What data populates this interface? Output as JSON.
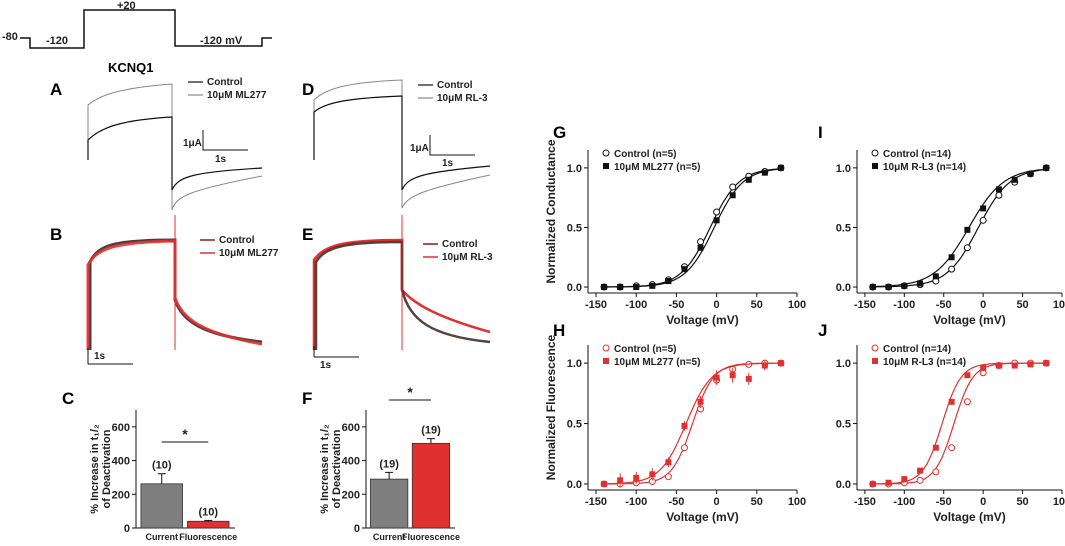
{
  "protocol": {
    "v_hold": "-80",
    "v_pre": "-120",
    "v_test": "+20",
    "v_tail": "-120 mV"
  },
  "title": "KCNQ1",
  "panels": {
    "A": "A",
    "B": "B",
    "C": "C",
    "D": "D",
    "E": "E",
    "F": "F",
    "G": "G",
    "H": "H",
    "I": "I",
    "J": "J"
  },
  "traces": {
    "A": {
      "legend": [
        "Control",
        "10μM ML277"
      ],
      "scale_current": "1μA",
      "scale_time": "1s"
    },
    "D": {
      "legend": [
        "Control",
        "10μM RL-3"
      ],
      "scale_current": "1μA",
      "scale_time": "1s"
    },
    "B": {
      "legend": [
        "Control",
        "10μM ML277"
      ],
      "scale_time": "1s"
    },
    "E": {
      "legend": [
        "Control",
        "10μM RL-3"
      ],
      "scale_time": "1s"
    }
  },
  "colors": {
    "control_gray": "#7f7f7f",
    "drug_red": "#e03131",
    "black": "#111111",
    "red_label": "#e03131"
  },
  "chart_data": [
    {
      "id": "C",
      "type": "bar",
      "ylabel": [
        "% Increase in t₁/₂",
        "of Deactivation"
      ],
      "categories": [
        "Current",
        "Fluorescence"
      ],
      "values": [
        262,
        40
      ],
      "errors": [
        60,
        5
      ],
      "n_labels": [
        "(10)",
        "(10)"
      ],
      "ylim": [
        0,
        700
      ],
      "yticks": [
        0,
        200,
        400,
        600
      ],
      "significance": "*"
    },
    {
      "id": "F",
      "type": "bar",
      "ylabel": [
        "% Increase in t₁/₂",
        "of Deactivation"
      ],
      "categories": [
        "Current",
        "Fluorescence"
      ],
      "values": [
        290,
        502
      ],
      "errors": [
        40,
        28
      ],
      "n_labels": [
        "(19)",
        "(19)"
      ],
      "ylim": [
        0,
        700
      ],
      "yticks": [
        0,
        200,
        400,
        600
      ],
      "significance": "*"
    },
    {
      "id": "G",
      "type": "scatter",
      "xlabel": "Voltage (mV)",
      "ylabel": "Normalized Conductance",
      "xlim": [
        -160,
        100
      ],
      "ylim": [
        -0.05,
        1.15
      ],
      "xticks": [
        -150,
        -100,
        -50,
        0,
        50,
        100
      ],
      "yticks": [
        0.0,
        0.5,
        1.0
      ],
      "series": [
        {
          "name": "Control (n=5)",
          "marker": "open-circle",
          "x": [
            -140,
            -120,
            -100,
            -80,
            -60,
            -40,
            -20,
            0,
            20,
            40,
            60,
            80
          ],
          "y": [
            0.0,
            0.0,
            0.01,
            0.02,
            0.06,
            0.17,
            0.38,
            0.63,
            0.84,
            0.93,
            0.97,
            1.0
          ],
          "fit": {
            "v_half": -8,
            "k": 18
          }
        },
        {
          "name": "10μM ML277 (n=5)",
          "marker": "filled-square",
          "x": [
            -140,
            -120,
            -100,
            -80,
            -60,
            -40,
            -20,
            0,
            20,
            40,
            60,
            80
          ],
          "y": [
            0.0,
            0.0,
            0.0,
            0.01,
            0.05,
            0.15,
            0.33,
            0.56,
            0.77,
            0.9,
            0.96,
            1.0
          ],
          "fit": {
            "v_half": -3,
            "k": 18
          }
        }
      ]
    },
    {
      "id": "I",
      "type": "scatter",
      "xlabel": "Voltage (mV)",
      "ylabel": "",
      "xlim": [
        -160,
        100
      ],
      "ylim": [
        -0.05,
        1.15
      ],
      "xticks": [
        -150,
        -100,
        -50,
        0,
        50,
        100
      ],
      "yticks": [
        0.0,
        0.5,
        1.0
      ],
      "series": [
        {
          "name": "Control (n=14)",
          "marker": "open-circle",
          "x": [
            -140,
            -120,
            -100,
            -80,
            -60,
            -40,
            -20,
            0,
            20,
            40,
            60,
            80
          ],
          "y": [
            0.0,
            0.0,
            0.01,
            0.02,
            0.05,
            0.15,
            0.33,
            0.56,
            0.77,
            0.88,
            0.95,
            1.0
          ],
          "fit": {
            "v_half": -6,
            "k": 20
          }
        },
        {
          "name": "10μM R-L3 (n=14)",
          "marker": "filled-square",
          "x": [
            -140,
            -120,
            -100,
            -80,
            -60,
            -40,
            -20,
            0,
            20,
            40,
            60,
            80
          ],
          "y": [
            0.0,
            0.0,
            0.01,
            0.03,
            0.09,
            0.25,
            0.48,
            0.66,
            0.82,
            0.9,
            0.95,
            1.0
          ],
          "fit": {
            "v_half": -18,
            "k": 22
          }
        }
      ]
    },
    {
      "id": "H",
      "type": "scatter",
      "xlabel": "Voltage (mV)",
      "ylabel": "Normalized Fluorescence",
      "xlim": [
        -160,
        100
      ],
      "ylim": [
        -0.05,
        1.15
      ],
      "xticks": [
        -150,
        -100,
        -50,
        0,
        50,
        100
      ],
      "yticks": [
        0.0,
        0.5,
        1.0
      ],
      "series": [
        {
          "name": "Control (n=5)",
          "marker": "open-circle",
          "x": [
            -140,
            -120,
            -100,
            -80,
            -60,
            -40,
            -20,
            0,
            20,
            40,
            60,
            80
          ],
          "y": [
            0.0,
            0.0,
            0.01,
            0.02,
            0.06,
            0.3,
            0.62,
            0.86,
            0.95,
            0.99,
            1.0,
            1.0
          ],
          "fit": {
            "v_half": -30,
            "k": 13
          }
        },
        {
          "name": "10μM ML277 (n=5)",
          "marker": "filled-square",
          "x": [
            -140,
            -120,
            -100,
            -80,
            -60,
            -40,
            -20,
            0,
            20,
            40,
            60,
            80
          ],
          "y": [
            0.0,
            0.03,
            0.05,
            0.08,
            0.18,
            0.48,
            0.68,
            0.88,
            0.9,
            0.87,
            0.98,
            1.0
          ],
          "err": [
            0.0,
            0.06,
            0.05,
            0.05,
            0.04,
            0.04,
            0.05,
            0.06,
            0.06,
            0.05,
            0.04,
            0.0
          ],
          "fit": {
            "v_half": -38,
            "k": 16
          }
        }
      ]
    },
    {
      "id": "J",
      "type": "scatter",
      "xlabel": "Voltage (mV)",
      "ylabel": "",
      "xlim": [
        -160,
        100
      ],
      "ylim": [
        -0.05,
        1.15
      ],
      "xticks": [
        -150,
        -100,
        -50,
        0,
        50,
        100
      ],
      "yticks": [
        0.0,
        0.5,
        1.0
      ],
      "series": [
        {
          "name": "Control (n=14)",
          "marker": "open-circle",
          "x": [
            -140,
            -120,
            -100,
            -80,
            -60,
            -40,
            -20,
            0,
            20,
            40,
            60,
            80
          ],
          "y": [
            0.0,
            0.0,
            0.01,
            0.03,
            0.1,
            0.3,
            0.68,
            0.92,
            0.98,
            1.0,
            1.0,
            1.0
          ],
          "fit": {
            "v_half": -37,
            "k": 12
          }
        },
        {
          "name": "10μM R-L3 (n=14)",
          "marker": "filled-square",
          "x": [
            -140,
            -120,
            -100,
            -80,
            -60,
            -40,
            -20,
            0,
            20,
            40,
            60,
            80
          ],
          "y": [
            0.0,
            0.01,
            0.04,
            0.11,
            0.3,
            0.68,
            0.9,
            0.96,
            0.98,
            0.98,
            0.99,
            1.0
          ],
          "fit": {
            "v_half": -52,
            "k": 12
          }
        }
      ]
    }
  ]
}
